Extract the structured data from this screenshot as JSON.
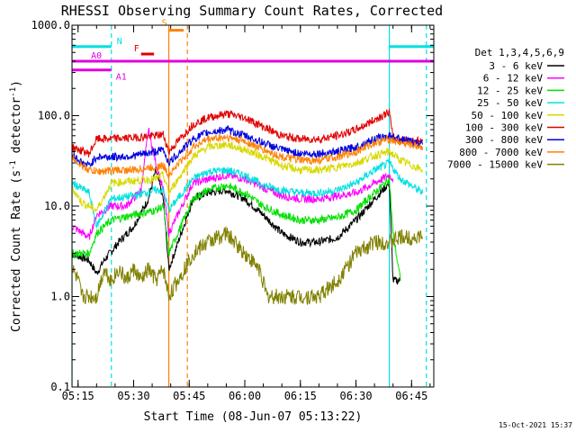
{
  "chart_data": {
    "type": "line",
    "title": "RHESSI Observing Summary Count Rates, Corrected",
    "xlabel": "Start Time (08-Jun-07 05:13:22)",
    "ylabel_main": "Corrected Count Rate (s",
    "ylabel_sup1": "-1",
    "ylabel_mid": " detector",
    "ylabel_sup2": "-1",
    "ylabel_end": ")",
    "y_scale": "log",
    "ylim": [
      0.1,
      1000
    ],
    "xlim": [
      "05:13:22",
      "06:51:00"
    ],
    "x_ticks": [
      "05:15",
      "05:30",
      "05:45",
      "06:00",
      "06:15",
      "06:30",
      "06:45"
    ],
    "y_ticks": [
      "0.1",
      "1.0",
      "10.0",
      "100.0",
      "1000.0"
    ],
    "footer_date": "15-Oct-2021 15:37",
    "legend": {
      "placement": "right",
      "header": "Det 1,3,4,5,6,9",
      "entries": [
        {
          "label": "3 - 6 keV",
          "color": "#000000"
        },
        {
          "label": "6 - 12 keV",
          "color": "#ff00ff"
        },
        {
          "label": "12 - 25 keV",
          "color": "#00e000"
        },
        {
          "label": "25 - 50 keV",
          "color": "#00e0e0"
        },
        {
          "label": "50 - 100 keV",
          "color": "#d8d800"
        },
        {
          "label": "100 - 300 keV",
          "color": "#e00000"
        },
        {
          "label": "300 - 800 keV",
          "color": "#0000e0"
        },
        {
          "label": "800 - 7000 keV",
          "color": "#ff8000"
        },
        {
          "label": "7000 - 15000 keV",
          "color": "#808000"
        }
      ]
    },
    "flag_bars": [
      {
        "label": "N",
        "color": "#00e0e0",
        "y": 580,
        "segments": [
          [
            "05:13:22",
            "05:24:00"
          ],
          [
            "06:39:00",
            "06:51:00"
          ]
        ]
      },
      {
        "label": "F",
        "color": "#e00000",
        "y": 480,
        "segments": [
          [
            "05:32:00",
            "05:35:30"
          ]
        ]
      },
      {
        "label": "S",
        "color": "#ff8000",
        "y": 880,
        "segments": [
          [
            "05:39:30",
            "05:43:30"
          ]
        ]
      },
      {
        "label": "A0",
        "color": "#e000e0",
        "y": 400,
        "segments": [
          [
            "05:13:22",
            "06:51:00"
          ]
        ]
      },
      {
        "label": "A1",
        "color": "#e000e0",
        "y": 320,
        "segments": [
          [
            "05:13:22",
            "05:24:00"
          ]
        ]
      }
    ],
    "vertical_markers": [
      {
        "time": "05:13:22",
        "color": "#00e0e0",
        "style": "solid"
      },
      {
        "time": "05:24:00",
        "color": "#00e0e0",
        "style": "dashed"
      },
      {
        "time": "05:39:30",
        "color": "#ff8000",
        "style": "solid"
      },
      {
        "time": "05:44:30",
        "color": "#ff8000",
        "style": "dashed"
      },
      {
        "time": "06:39:00",
        "color": "#00e0e0",
        "style": "solid"
      },
      {
        "time": "06:49:00",
        "color": "#00e0e0",
        "style": "dashed"
      }
    ],
    "series": [
      {
        "name": "3 - 6 keV",
        "color": "#000000",
        "points": [
          [
            "05:13:22",
            3
          ],
          [
            "05:18:00",
            2.5
          ],
          [
            "05:20:00",
            1.8
          ],
          [
            "05:22:00",
            2.5
          ],
          [
            "05:26:00",
            4
          ],
          [
            "05:30:00",
            6
          ],
          [
            "05:34:00",
            12
          ],
          [
            "05:36:00",
            25
          ],
          [
            "05:38:00",
            12
          ],
          [
            "05:39:30",
            2
          ],
          [
            "05:46:00",
            12
          ],
          [
            "05:50:00",
            14
          ],
          [
            "05:55:00",
            15
          ],
          [
            "06:00:00",
            12
          ],
          [
            "06:05:00",
            8
          ],
          [
            "06:10:00",
            5
          ],
          [
            "06:15:00",
            4
          ],
          [
            "06:20:00",
            4
          ],
          [
            "06:25:00",
            4.5
          ],
          [
            "06:30:00",
            7
          ],
          [
            "06:35:00",
            12
          ],
          [
            "06:39:00",
            18
          ],
          [
            "06:40:00",
            1.5
          ],
          [
            "06:42:00",
            1.5
          ]
        ]
      },
      {
        "name": "6 - 12 keV",
        "color": "#ff00ff",
        "points": [
          [
            "05:13:22",
            6
          ],
          [
            "05:18:00",
            4.5
          ],
          [
            "05:20:00",
            8
          ],
          [
            "05:24:00",
            10
          ],
          [
            "05:28:00",
            10
          ],
          [
            "05:32:00",
            15
          ],
          [
            "05:34:00",
            70
          ],
          [
            "05:36:00",
            30
          ],
          [
            "05:38:00",
            15
          ],
          [
            "05:39:30",
            5
          ],
          [
            "05:46:00",
            18
          ],
          [
            "05:55:00",
            22
          ],
          [
            "06:00:00",
            20
          ],
          [
            "06:05:00",
            16
          ],
          [
            "06:10:00",
            13
          ],
          [
            "06:15:00",
            12
          ],
          [
            "06:20:00",
            12
          ],
          [
            "06:25:00",
            13
          ],
          [
            "06:30:00",
            14
          ],
          [
            "06:35:00",
            18
          ],
          [
            "06:39:00",
            22
          ],
          [
            "06:40:00",
            20
          ]
        ]
      },
      {
        "name": "12 - 25 keV",
        "color": "#00e000",
        "points": [
          [
            "05:13:22",
            3
          ],
          [
            "05:18:00",
            3
          ],
          [
            "05:20:00",
            5
          ],
          [
            "05:24:00",
            7
          ],
          [
            "05:30:00",
            8
          ],
          [
            "05:36:00",
            9
          ],
          [
            "05:38:00",
            10
          ],
          [
            "05:39:30",
            3
          ],
          [
            "05:46:00",
            12
          ],
          [
            "05:50:00",
            15
          ],
          [
            "05:55:00",
            17
          ],
          [
            "06:00:00",
            14
          ],
          [
            "06:05:00",
            10
          ],
          [
            "06:10:00",
            8
          ],
          [
            "06:15:00",
            7
          ],
          [
            "06:20:00",
            7
          ],
          [
            "06:25:00",
            7.5
          ],
          [
            "06:30:00",
            9
          ],
          [
            "06:35:00",
            14
          ],
          [
            "06:39:00",
            20
          ],
          [
            "06:40:00",
            5
          ],
          [
            "06:42:00",
            1.5
          ]
        ]
      },
      {
        "name": "25 - 50 keV",
        "color": "#00e0e0",
        "points": [
          [
            "05:13:22",
            18
          ],
          [
            "05:18:00",
            14
          ],
          [
            "05:20:00",
            6
          ],
          [
            "05:24:00",
            12
          ],
          [
            "05:30:00",
            13
          ],
          [
            "05:36:00",
            15
          ],
          [
            "05:38:00",
            15
          ],
          [
            "05:39:30",
            9
          ],
          [
            "05:46:00",
            20
          ],
          [
            "05:50:00",
            24
          ],
          [
            "05:55:00",
            25
          ],
          [
            "06:00:00",
            22
          ],
          [
            "06:05:00",
            17
          ],
          [
            "06:10:00",
            15
          ],
          [
            "06:15:00",
            14
          ],
          [
            "06:20:00",
            14
          ],
          [
            "06:25:00",
            15
          ],
          [
            "06:30:00",
            18
          ],
          [
            "06:35:00",
            25
          ],
          [
            "06:39:00",
            30
          ],
          [
            "06:42:00",
            20
          ],
          [
            "06:48:00",
            14
          ]
        ]
      },
      {
        "name": "50 - 100 keV",
        "color": "#d8d800",
        "points": [
          [
            "05:13:22",
            16
          ],
          [
            "05:16:00",
            11
          ],
          [
            "05:20:00",
            9
          ],
          [
            "05:24:00",
            18
          ],
          [
            "05:30:00",
            19
          ],
          [
            "05:36:00",
            20
          ],
          [
            "05:38:00",
            22
          ],
          [
            "05:39:30",
            14
          ],
          [
            "05:46:00",
            35
          ],
          [
            "05:50:00",
            45
          ],
          [
            "05:55:00",
            48
          ],
          [
            "06:00:00",
            42
          ],
          [
            "06:05:00",
            35
          ],
          [
            "06:10:00",
            28
          ],
          [
            "06:15:00",
            25
          ],
          [
            "06:20:00",
            25
          ],
          [
            "06:25:00",
            27
          ],
          [
            "06:30:00",
            30
          ],
          [
            "06:35:00",
            36
          ],
          [
            "06:39:00",
            40
          ],
          [
            "06:42:00",
            32
          ],
          [
            "06:48:00",
            25
          ]
        ]
      },
      {
        "name": "100 - 300 keV",
        "color": "#e00000",
        "points": [
          [
            "05:13:22",
            45
          ],
          [
            "05:18:00",
            38
          ],
          [
            "05:20:00",
            55
          ],
          [
            "05:26:00",
            56
          ],
          [
            "05:30:00",
            57
          ],
          [
            "05:36:00",
            60
          ],
          [
            "05:38:00",
            62
          ],
          [
            "05:39:30",
            40
          ],
          [
            "05:46:00",
            80
          ],
          [
            "05:50:00",
            95
          ],
          [
            "05:55:00",
            105
          ],
          [
            "06:00:00",
            95
          ],
          [
            "06:05:00",
            75
          ],
          [
            "06:10:00",
            60
          ],
          [
            "06:15:00",
            55
          ],
          [
            "06:20:00",
            55
          ],
          [
            "06:25:00",
            60
          ],
          [
            "06:30:00",
            70
          ],
          [
            "06:35:00",
            90
          ],
          [
            "06:39:00",
            110
          ],
          [
            "06:40:00",
            55
          ],
          [
            "06:48:00",
            52
          ]
        ]
      },
      {
        "name": "300 - 800 keV",
        "color": "#0000e0",
        "points": [
          [
            "05:13:22",
            38
          ],
          [
            "05:16:00",
            30
          ],
          [
            "05:18:00",
            28
          ],
          [
            "05:20:00",
            35
          ],
          [
            "05:26:00",
            35
          ],
          [
            "05:30:00",
            36
          ],
          [
            "05:36:00",
            40
          ],
          [
            "05:38:00",
            42
          ],
          [
            "05:39:30",
            30
          ],
          [
            "05:46:00",
            55
          ],
          [
            "05:50:00",
            65
          ],
          [
            "05:55:00",
            70
          ],
          [
            "06:00:00",
            60
          ],
          [
            "06:05:00",
            50
          ],
          [
            "06:10:00",
            42
          ],
          [
            "06:15:00",
            38
          ],
          [
            "06:20:00",
            38
          ],
          [
            "06:25:00",
            40
          ],
          [
            "06:30:00",
            45
          ],
          [
            "06:35:00",
            55
          ],
          [
            "06:39:00",
            60
          ],
          [
            "06:42:00",
            55
          ],
          [
            "06:48:00",
            48
          ]
        ]
      },
      {
        "name": "800 - 7000 keV",
        "color": "#ff8000",
        "points": [
          [
            "05:13:22",
            35
          ],
          [
            "05:16:00",
            28
          ],
          [
            "05:18:00",
            25
          ],
          [
            "05:20:00",
            24
          ],
          [
            "05:26:00",
            25
          ],
          [
            "05:30:00",
            25
          ],
          [
            "05:36:00",
            27
          ],
          [
            "05:38:00",
            28
          ],
          [
            "05:39:30",
            22
          ],
          [
            "05:46:00",
            45
          ],
          [
            "05:50:00",
            55
          ],
          [
            "05:55:00",
            58
          ],
          [
            "06:00:00",
            52
          ],
          [
            "06:05:00",
            42
          ],
          [
            "06:10:00",
            35
          ],
          [
            "06:15:00",
            32
          ],
          [
            "06:20:00",
            32
          ],
          [
            "06:25:00",
            35
          ],
          [
            "06:30:00",
            40
          ],
          [
            "06:35:00",
            50
          ],
          [
            "06:39:00",
            55
          ],
          [
            "06:42:00",
            50
          ],
          [
            "06:48:00",
            45
          ]
        ]
      },
      {
        "name": "7000 - 15000 keV",
        "color": "#808000",
        "points": [
          [
            "05:13:22",
            2
          ],
          [
            "05:15:00",
            1.5
          ],
          [
            "05:16:00",
            1
          ],
          [
            "05:20:00",
            1
          ],
          [
            "05:22:00",
            2
          ],
          [
            "05:24:00",
            1.5
          ],
          [
            "05:26:00",
            2
          ],
          [
            "05:28:00",
            1.5
          ],
          [
            "05:30:00",
            2
          ],
          [
            "05:32:00",
            1.5
          ],
          [
            "05:34:00",
            2
          ],
          [
            "05:36:00",
            1.5
          ],
          [
            "05:38:00",
            2
          ],
          [
            "05:39:30",
            1
          ],
          [
            "05:46:00",
            3
          ],
          [
            "05:50:00",
            4
          ],
          [
            "05:55:00",
            5
          ],
          [
            "06:00:00",
            3
          ],
          [
            "06:04:00",
            2
          ],
          [
            "06:06:00",
            1
          ],
          [
            "06:20:00",
            1
          ],
          [
            "06:25:00",
            1.5
          ],
          [
            "06:30:00",
            3
          ],
          [
            "06:35:00",
            4
          ],
          [
            "06:39:00",
            4
          ],
          [
            "06:42:00",
            4.5
          ],
          [
            "06:48:00",
            4.5
          ]
        ]
      }
    ]
  }
}
